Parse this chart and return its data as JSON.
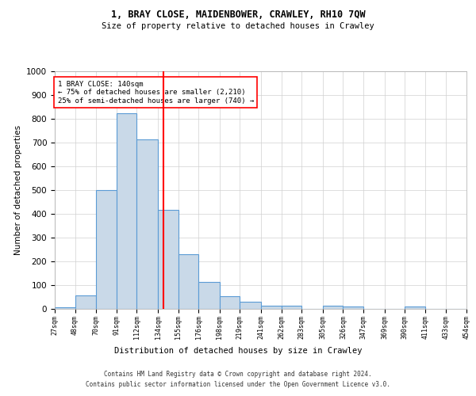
{
  "title1": "1, BRAY CLOSE, MAIDENBOWER, CRAWLEY, RH10 7QW",
  "title2": "Size of property relative to detached houses in Crawley",
  "xlabel": "Distribution of detached houses by size in Crawley",
  "ylabel": "Number of detached properties",
  "bin_edges": [
    27,
    48,
    70,
    91,
    112,
    134,
    155,
    176,
    198,
    219,
    241,
    262,
    283,
    305,
    326,
    347,
    369,
    390,
    411,
    433,
    454
  ],
  "bar_heights": [
    8,
    57,
    500,
    825,
    712,
    418,
    230,
    115,
    54,
    30,
    15,
    13,
    0,
    13,
    9,
    0,
    0,
    10,
    0,
    0
  ],
  "bar_color": "#c9d9e8",
  "bar_edgecolor": "#5b9bd5",
  "bar_linewidth": 0.8,
  "vline_x": 140,
  "vline_color": "red",
  "vline_linewidth": 1.5,
  "annotation_text": "1 BRAY CLOSE: 140sqm\n← 75% of detached houses are smaller (2,210)\n25% of semi-detached houses are larger (740) →",
  "annotation_box_edgecolor": "red",
  "annotation_box_facecolor": "white",
  "ylim": [
    0,
    1000
  ],
  "yticks": [
    0,
    100,
    200,
    300,
    400,
    500,
    600,
    700,
    800,
    900,
    1000
  ],
  "footer_line1": "Contains HM Land Registry data © Crown copyright and database right 2024.",
  "footer_line2": "Contains public sector information licensed under the Open Government Licence v3.0.",
  "background_color": "#ffffff",
  "grid_color": "#d0d0d0"
}
